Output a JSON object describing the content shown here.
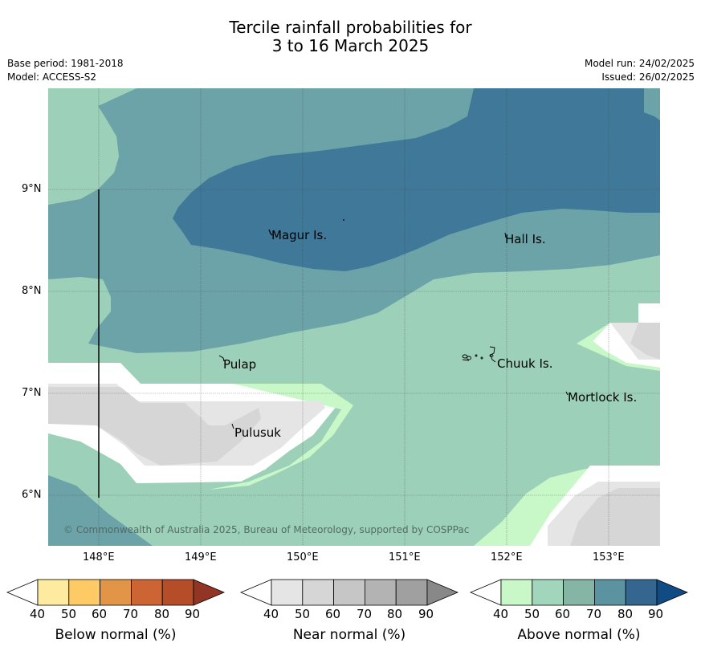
{
  "title": {
    "line1": "Tercile rainfall probabilities for",
    "line2": "3 to 16 March 2025"
  },
  "meta": {
    "base_period": "Base period: 1981-2018",
    "model": "Model: ACCESS-S2",
    "model_run": "Model run: 24/02/2025",
    "issued": "Issued: 26/02/2025"
  },
  "map": {
    "lat_ticks": [
      "9°N",
      "8°N",
      "7°N",
      "6°N"
    ],
    "lon_ticks": [
      "148°E",
      "149°E",
      "150°E",
      "151°E",
      "152°E",
      "153°E"
    ],
    "places": {
      "magur": "Magur Is.",
      "hall": "Hall Is.",
      "pulap": "Pulap",
      "chuuk": "Chuuk Is.",
      "mortlock": "Mortlock Is.",
      "pulusuk": "Pulusuk"
    },
    "copyright": "© Commonwealth of Australia 2025, Bureau of Meteorology, supported by COSPPac",
    "fill_colors": {
      "above_50": "#9dd0b9",
      "above_70": "#6ca3a8",
      "above_80": "#3f7898",
      "above_40": "#c8f7c8",
      "near_50": "#e5e5e5",
      "near_60": "#d6d6d6",
      "white": "#ffffff"
    }
  },
  "legends": [
    {
      "title": "Below normal (%)",
      "ticks": [
        "40",
        "50",
        "60",
        "70",
        "80",
        "90"
      ],
      "colors": [
        "#ffffff",
        "#feeba0",
        "#fdca65",
        "#e29547",
        "#cd6434",
        "#b44d28",
        "#923524"
      ]
    },
    {
      "title": "Near normal (%)",
      "ticks": [
        "40",
        "50",
        "60",
        "70",
        "80",
        "90"
      ],
      "colors": [
        "#ffffff",
        "#e5e5e5",
        "#d6d6d6",
        "#c6c6c6",
        "#b3b3b3",
        "#a0a0a0",
        "#888888"
      ]
    },
    {
      "title": "Above normal (%)",
      "ticks": [
        "40",
        "50",
        "60",
        "70",
        "80",
        "90"
      ],
      "colors": [
        "#ffffff",
        "#c8f7c8",
        "#a1d6bd",
        "#84b5a5",
        "#5b93a0",
        "#346690",
        "#104b85"
      ]
    }
  ]
}
